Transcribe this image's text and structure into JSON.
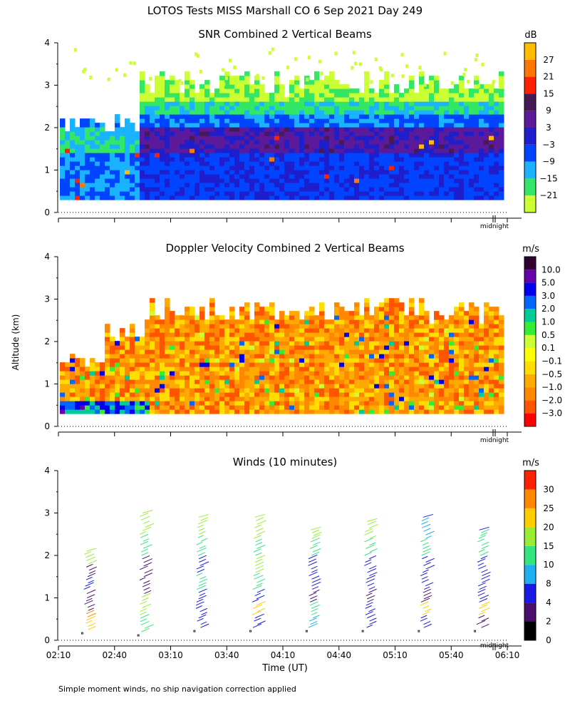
{
  "title": "LOTOS Tests MISS Marshall CO    6 Sep 2021 Day 249",
  "ylabel": "Altitude (km)",
  "xlabel": "Time (UT)",
  "footnote": "Simple moment winds, no ship navigation correction applied",
  "midnight_label": "midnight",
  "time_ticks": [
    "02:10",
    "02:40",
    "03:10",
    "03:40",
    "04:10",
    "04:40",
    "05:10",
    "05:40",
    "06:10"
  ],
  "altitude_ticks": [
    "0",
    "1",
    "2",
    "3",
    "4"
  ],
  "colors": {
    "snr": [
      "#ccff33",
      "#33e666",
      "#19b3ff",
      "#0044ff",
      "#1e1ecc",
      "#5a1a9a",
      "#471a55",
      "#ff2200",
      "#ff7700",
      "#ffbb00"
    ],
    "velocity": [
      "#ff0000",
      "#ff5500",
      "#ff8800",
      "#ffaa00",
      "#ffdd00",
      "#ffff00",
      "#ccff33",
      "#33ee33",
      "#00cc99",
      "#0066ff",
      "#0000ee",
      "#6600aa",
      "#330033"
    ],
    "winds": [
      "#000000",
      "#4a0f6b",
      "#1a1ae6",
      "#1eb0f0",
      "#33e680",
      "#99ee33",
      "#ffcc00",
      "#ff8800",
      "#ff2200"
    ]
  },
  "chart_data": [
    {
      "type": "heatmap",
      "title": "SNR Combined 2 Vertical Beams",
      "unit": "dB",
      "xlabel": "Time (UT)",
      "ylabel": "Altitude (km)",
      "xlim": [
        "02:10",
        "06:10"
      ],
      "ylim": [
        0,
        4
      ],
      "colorbar_labels": [
        "27",
        "21",
        "15",
        "9",
        "3",
        "−3",
        "−9",
        "−15",
        "−21"
      ],
      "colorbar_levels": [
        -24,
        -18,
        -12,
        -6,
        0,
        6,
        12,
        18,
        24,
        30
      ],
      "layers": [
        {
          "level": "high SNR layer (3 to 9 dB)",
          "altitude_km": [
            1.4,
            2.0
          ],
          "time": [
            "02:43",
            "06:05"
          ]
        },
        {
          "level": "moderate SNR (-3 to 3 dB)",
          "altitude_km": [
            0.3,
            1.4
          ],
          "time": [
            "02:12",
            "06:05"
          ]
        },
        {
          "level": "low SNR (-21 to -9 dB)",
          "altitude_km": [
            2.0,
            3.0
          ],
          "time": [
            "02:12",
            "06:05"
          ]
        }
      ]
    },
    {
      "type": "heatmap",
      "title": "Doppler Velocity Combined 2 Vertical Beams",
      "unit": "m/s",
      "xlabel": "Time (UT)",
      "ylabel": "Altitude (km)",
      "xlim": [
        "02:10",
        "06:10"
      ],
      "ylim": [
        0,
        4
      ],
      "colorbar_labels": [
        "10.0",
        "5.0",
        "3.0",
        "2.0",
        "1.0",
        "0.5",
        "0.1",
        "−0.1",
        "−0.5",
        "−1.0",
        "−2.0",
        "−3.0"
      ],
      "layers": [
        {
          "level": "mostly -0.5 to -2.0 m/s (downward)",
          "altitude_km": [
            0.3,
            2.7
          ],
          "time": [
            "02:12",
            "06:05"
          ]
        }
      ]
    },
    {
      "type": "barbs",
      "title": "Winds (10 minutes)",
      "unit": "m/s",
      "xlabel": "Time (UT)",
      "ylabel": "Altitude (km)",
      "xlim": [
        "02:10",
        "06:10"
      ],
      "ylim": [
        0,
        4
      ],
      "colorbar_labels": [
        "30",
        "25",
        "20",
        "15",
        "10",
        "8",
        "4",
        "2",
        "0"
      ],
      "colorbar_levels": [
        0,
        2,
        4,
        8,
        10,
        15,
        20,
        25,
        30,
        35
      ],
      "profiles": [
        {
          "time": "02:25",
          "altitude_km": [
            0.25,
            0.55,
            0.7,
            1.0,
            1.2,
            1.5,
            1.8,
            2.1
          ],
          "speed_ms": [
            20,
            25,
            2,
            3,
            4,
            3,
            15,
            15
          ]
        },
        {
          "time": "02:55",
          "altitude_km": [
            0.2,
            0.6,
            1.1,
            1.5,
            2.0,
            2.5,
            3.0
          ],
          "speed_ms": [
            12,
            18,
            2,
            3,
            12,
            15,
            18
          ]
        },
        {
          "time": "03:25",
          "altitude_km": [
            0.3,
            0.6,
            0.9,
            1.2,
            1.6,
            2.0,
            2.5,
            2.9
          ],
          "speed_ms": [
            4,
            4,
            4,
            10,
            5,
            12,
            15,
            15
          ]
        },
        {
          "time": "03:55",
          "altitude_km": [
            0.3,
            0.6,
            0.9,
            1.2,
            1.6,
            2.0,
            2.4,
            2.9
          ],
          "speed_ms": [
            4,
            22,
            5,
            12,
            15,
            13,
            15,
            15
          ]
        },
        {
          "time": "04:25",
          "altitude_km": [
            0.3,
            0.6,
            0.9,
            1.2,
            1.6,
            2.0,
            2.4,
            2.6
          ],
          "speed_ms": [
            8,
            12,
            3,
            4,
            4,
            12,
            15,
            15
          ]
        },
        {
          "time": "04:55",
          "altitude_km": [
            0.3,
            0.6,
            0.9,
            1.2,
            1.6,
            2.0,
            2.4,
            2.8
          ],
          "speed_ms": [
            4,
            4,
            3,
            4,
            4,
            12,
            15,
            15
          ]
        },
        {
          "time": "05:25",
          "altitude_km": [
            0.3,
            0.6,
            0.9,
            1.2,
            1.6,
            2.0,
            2.4,
            2.9
          ],
          "speed_ms": [
            4,
            20,
            3,
            4,
            4,
            12,
            8,
            4
          ]
        },
        {
          "time": "05:55",
          "altitude_km": [
            0.3,
            0.6,
            0.9,
            1.2,
            1.6,
            2.0,
            2.4,
            2.6
          ],
          "speed_ms": [
            3,
            20,
            4,
            4,
            4,
            12,
            12,
            4
          ]
        }
      ]
    }
  ]
}
